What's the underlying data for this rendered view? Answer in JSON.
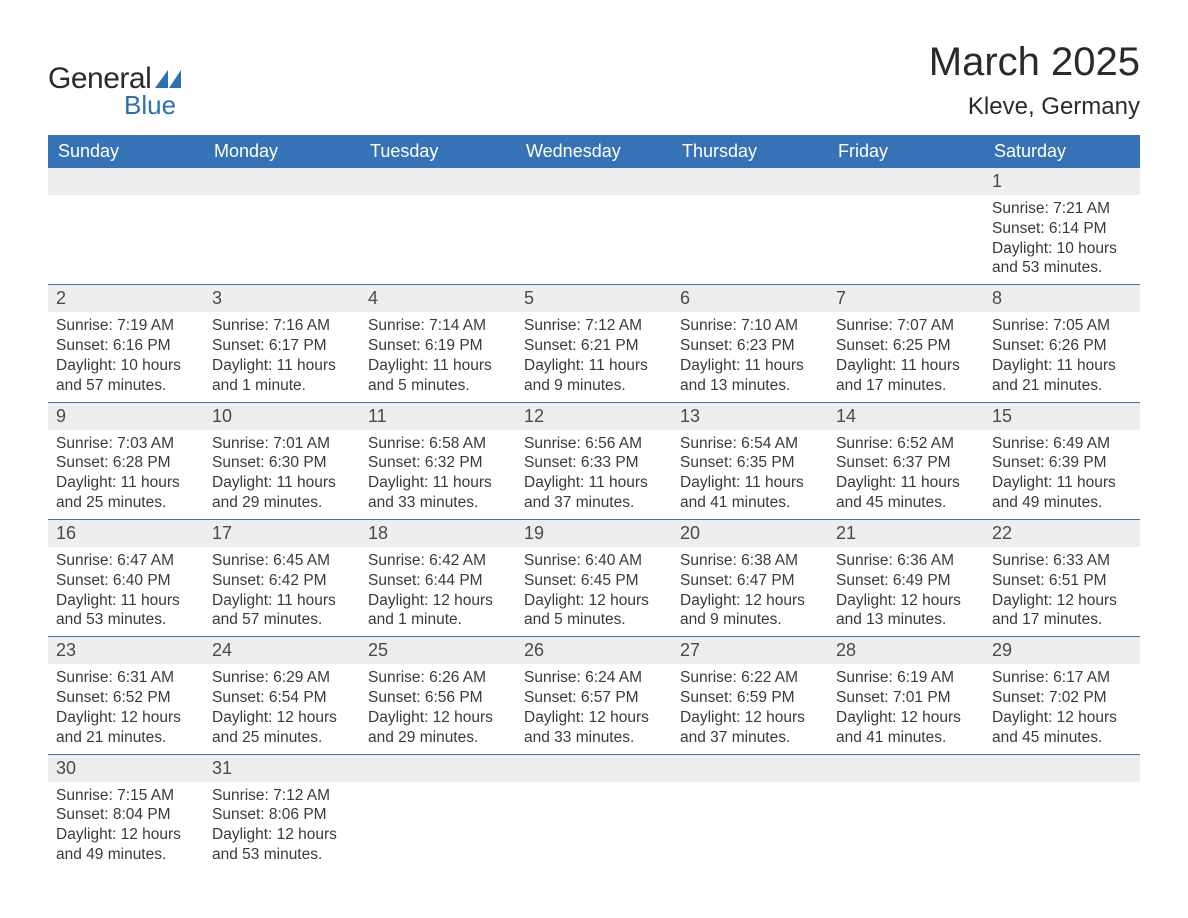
{
  "logo": {
    "text_general": "General",
    "text_blue": "Blue",
    "flag_color": "#2e6fb0"
  },
  "title": "March 2025",
  "location": "Kleve, Germany",
  "colors": {
    "header_bg": "#3573b6",
    "header_text": "#ffffff",
    "daynum_bg": "#eeeeee",
    "row_divider": "#3573b6",
    "body_text": "#3a3a3a",
    "title_text": "#2a2a2a"
  },
  "typography": {
    "title_fontsize": 40,
    "location_fontsize": 24,
    "dayheader_fontsize": 18,
    "daynum_fontsize": 18,
    "body_fontsize": 15.5
  },
  "day_headers": [
    "Sunday",
    "Monday",
    "Tuesday",
    "Wednesday",
    "Thursday",
    "Friday",
    "Saturday"
  ],
  "weeks": [
    [
      null,
      null,
      null,
      null,
      null,
      null,
      {
        "n": "1",
        "sunrise": "Sunrise: 7:21 AM",
        "sunset": "Sunset: 6:14 PM",
        "daylight": "Daylight: 10 hours and 53 minutes."
      }
    ],
    [
      {
        "n": "2",
        "sunrise": "Sunrise: 7:19 AM",
        "sunset": "Sunset: 6:16 PM",
        "daylight": "Daylight: 10 hours and 57 minutes."
      },
      {
        "n": "3",
        "sunrise": "Sunrise: 7:16 AM",
        "sunset": "Sunset: 6:17 PM",
        "daylight": "Daylight: 11 hours and 1 minute."
      },
      {
        "n": "4",
        "sunrise": "Sunrise: 7:14 AM",
        "sunset": "Sunset: 6:19 PM",
        "daylight": "Daylight: 11 hours and 5 minutes."
      },
      {
        "n": "5",
        "sunrise": "Sunrise: 7:12 AM",
        "sunset": "Sunset: 6:21 PM",
        "daylight": "Daylight: 11 hours and 9 minutes."
      },
      {
        "n": "6",
        "sunrise": "Sunrise: 7:10 AM",
        "sunset": "Sunset: 6:23 PM",
        "daylight": "Daylight: 11 hours and 13 minutes."
      },
      {
        "n": "7",
        "sunrise": "Sunrise: 7:07 AM",
        "sunset": "Sunset: 6:25 PM",
        "daylight": "Daylight: 11 hours and 17 minutes."
      },
      {
        "n": "8",
        "sunrise": "Sunrise: 7:05 AM",
        "sunset": "Sunset: 6:26 PM",
        "daylight": "Daylight: 11 hours and 21 minutes."
      }
    ],
    [
      {
        "n": "9",
        "sunrise": "Sunrise: 7:03 AM",
        "sunset": "Sunset: 6:28 PM",
        "daylight": "Daylight: 11 hours and 25 minutes."
      },
      {
        "n": "10",
        "sunrise": "Sunrise: 7:01 AM",
        "sunset": "Sunset: 6:30 PM",
        "daylight": "Daylight: 11 hours and 29 minutes."
      },
      {
        "n": "11",
        "sunrise": "Sunrise: 6:58 AM",
        "sunset": "Sunset: 6:32 PM",
        "daylight": "Daylight: 11 hours and 33 minutes."
      },
      {
        "n": "12",
        "sunrise": "Sunrise: 6:56 AM",
        "sunset": "Sunset: 6:33 PM",
        "daylight": "Daylight: 11 hours and 37 minutes."
      },
      {
        "n": "13",
        "sunrise": "Sunrise: 6:54 AM",
        "sunset": "Sunset: 6:35 PM",
        "daylight": "Daylight: 11 hours and 41 minutes."
      },
      {
        "n": "14",
        "sunrise": "Sunrise: 6:52 AM",
        "sunset": "Sunset: 6:37 PM",
        "daylight": "Daylight: 11 hours and 45 minutes."
      },
      {
        "n": "15",
        "sunrise": "Sunrise: 6:49 AM",
        "sunset": "Sunset: 6:39 PM",
        "daylight": "Daylight: 11 hours and 49 minutes."
      }
    ],
    [
      {
        "n": "16",
        "sunrise": "Sunrise: 6:47 AM",
        "sunset": "Sunset: 6:40 PM",
        "daylight": "Daylight: 11 hours and 53 minutes."
      },
      {
        "n": "17",
        "sunrise": "Sunrise: 6:45 AM",
        "sunset": "Sunset: 6:42 PM",
        "daylight": "Daylight: 11 hours and 57 minutes."
      },
      {
        "n": "18",
        "sunrise": "Sunrise: 6:42 AM",
        "sunset": "Sunset: 6:44 PM",
        "daylight": "Daylight: 12 hours and 1 minute."
      },
      {
        "n": "19",
        "sunrise": "Sunrise: 6:40 AM",
        "sunset": "Sunset: 6:45 PM",
        "daylight": "Daylight: 12 hours and 5 minutes."
      },
      {
        "n": "20",
        "sunrise": "Sunrise: 6:38 AM",
        "sunset": "Sunset: 6:47 PM",
        "daylight": "Daylight: 12 hours and 9 minutes."
      },
      {
        "n": "21",
        "sunrise": "Sunrise: 6:36 AM",
        "sunset": "Sunset: 6:49 PM",
        "daylight": "Daylight: 12 hours and 13 minutes."
      },
      {
        "n": "22",
        "sunrise": "Sunrise: 6:33 AM",
        "sunset": "Sunset: 6:51 PM",
        "daylight": "Daylight: 12 hours and 17 minutes."
      }
    ],
    [
      {
        "n": "23",
        "sunrise": "Sunrise: 6:31 AM",
        "sunset": "Sunset: 6:52 PM",
        "daylight": "Daylight: 12 hours and 21 minutes."
      },
      {
        "n": "24",
        "sunrise": "Sunrise: 6:29 AM",
        "sunset": "Sunset: 6:54 PM",
        "daylight": "Daylight: 12 hours and 25 minutes."
      },
      {
        "n": "25",
        "sunrise": "Sunrise: 6:26 AM",
        "sunset": "Sunset: 6:56 PM",
        "daylight": "Daylight: 12 hours and 29 minutes."
      },
      {
        "n": "26",
        "sunrise": "Sunrise: 6:24 AM",
        "sunset": "Sunset: 6:57 PM",
        "daylight": "Daylight: 12 hours and 33 minutes."
      },
      {
        "n": "27",
        "sunrise": "Sunrise: 6:22 AM",
        "sunset": "Sunset: 6:59 PM",
        "daylight": "Daylight: 12 hours and 37 minutes."
      },
      {
        "n": "28",
        "sunrise": "Sunrise: 6:19 AM",
        "sunset": "Sunset: 7:01 PM",
        "daylight": "Daylight: 12 hours and 41 minutes."
      },
      {
        "n": "29",
        "sunrise": "Sunrise: 6:17 AM",
        "sunset": "Sunset: 7:02 PM",
        "daylight": "Daylight: 12 hours and 45 minutes."
      }
    ],
    [
      {
        "n": "30",
        "sunrise": "Sunrise: 7:15 AM",
        "sunset": "Sunset: 8:04 PM",
        "daylight": "Daylight: 12 hours and 49 minutes."
      },
      {
        "n": "31",
        "sunrise": "Sunrise: 7:12 AM",
        "sunset": "Sunset: 8:06 PM",
        "daylight": "Daylight: 12 hours and 53 minutes."
      },
      null,
      null,
      null,
      null,
      null
    ]
  ]
}
